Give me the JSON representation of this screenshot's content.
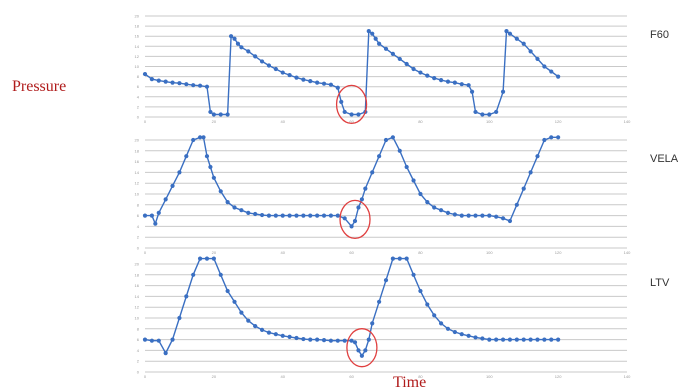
{
  "chart_data": {
    "type": "line",
    "ylabel": "Pressure",
    "xlabel": "Time",
    "x_ticks": [
      "0",
      "20",
      "40",
      "60",
      "80",
      "100",
      "120",
      "140"
    ],
    "y_ticks": [
      "0",
      "2",
      "4",
      "6",
      "8",
      "10",
      "12",
      "14",
      "16",
      "18",
      "20"
    ],
    "xlim": [
      0,
      140
    ],
    "ylim": [
      0,
      20
    ],
    "grid": "horizontal",
    "line_color": "#3a6fc2",
    "marker_color": "#e04040",
    "panels": [
      {
        "label": "F60",
        "x": [
          0,
          2,
          4,
          6,
          8,
          10,
          12,
          14,
          16,
          18,
          19,
          20,
          22,
          24,
          25,
          26,
          27,
          28,
          30,
          32,
          34,
          36,
          38,
          40,
          42,
          44,
          46,
          48,
          50,
          52,
          54,
          56,
          57,
          58,
          60,
          62,
          64,
          65,
          66,
          67,
          68,
          70,
          72,
          74,
          76,
          78,
          80,
          82,
          84,
          86,
          88,
          90,
          92,
          94,
          95,
          96,
          98,
          100,
          102,
          104,
          105,
          106,
          108,
          110,
          112,
          114,
          116,
          118,
          120
        ],
        "y": [
          8.5,
          7.5,
          7.2,
          7,
          6.8,
          6.7,
          6.5,
          6.3,
          6.2,
          6,
          1,
          0.5,
          0.5,
          0.5,
          16,
          15.5,
          14.5,
          13.8,
          13,
          12,
          11,
          10.2,
          9.5,
          8.8,
          8.3,
          7.8,
          7.4,
          7.1,
          6.8,
          6.6,
          6.4,
          5.8,
          3,
          1,
          0.5,
          0.5,
          1,
          17,
          16.5,
          15.5,
          14.5,
          13.5,
          12.5,
          11.5,
          10.5,
          9.5,
          8.8,
          8.2,
          7.7,
          7.3,
          7,
          6.8,
          6.5,
          6.3,
          5,
          1,
          0.5,
          0.5,
          1,
          5,
          17,
          16.5,
          15.5,
          14.5,
          13,
          11.5,
          10,
          9,
          8
        ],
        "marker": {
          "x": 60,
          "y": 2.5
        }
      },
      {
        "label": "VELA",
        "x": [
          0,
          2,
          3,
          4,
          6,
          8,
          10,
          12,
          14,
          16,
          17,
          18,
          19,
          20,
          22,
          24,
          26,
          28,
          30,
          32,
          34,
          36,
          38,
          40,
          42,
          44,
          46,
          48,
          50,
          52,
          54,
          56,
          58,
          60,
          61,
          62,
          63,
          64,
          66,
          68,
          70,
          72,
          74,
          76,
          78,
          80,
          82,
          84,
          86,
          88,
          90,
          92,
          94,
          96,
          98,
          100,
          102,
          104,
          106,
          108,
          110,
          112,
          114,
          116,
          118,
          120
        ],
        "y": [
          6,
          6,
          4.5,
          6.5,
          9,
          11.5,
          14,
          17,
          20,
          20.5,
          20.5,
          17,
          15,
          13,
          10.5,
          8.5,
          7.5,
          7,
          6.5,
          6.3,
          6.1,
          6,
          6,
          6,
          6,
          6,
          6,
          6,
          6,
          6,
          6,
          6,
          5.5,
          4,
          5,
          7.5,
          9,
          11,
          14,
          17,
          20,
          20.5,
          18,
          15,
          12.5,
          10,
          8.5,
          7.5,
          7,
          6.5,
          6.2,
          6,
          6,
          6,
          6,
          6,
          5.8,
          5.5,
          5,
          8,
          11,
          14,
          17,
          20,
          20.5,
          20.5
        ],
        "marker": {
          "x": 61,
          "y": 5.3
        }
      },
      {
        "label": "LTV",
        "x": [
          0,
          2,
          4,
          6,
          8,
          10,
          12,
          14,
          16,
          18,
          20,
          22,
          24,
          26,
          28,
          30,
          32,
          34,
          36,
          38,
          40,
          42,
          44,
          46,
          48,
          50,
          52,
          54,
          56,
          58,
          60,
          61,
          62,
          63,
          64,
          65,
          66,
          68,
          70,
          72,
          74,
          76,
          78,
          80,
          82,
          84,
          86,
          88,
          90,
          92,
          94,
          96,
          98,
          100,
          102,
          104,
          106,
          108,
          110,
          112,
          114,
          116,
          118,
          120
        ],
        "y": [
          6,
          5.8,
          5.8,
          3.5,
          6,
          10,
          14,
          18,
          21,
          21,
          21,
          18,
          15,
          13,
          11,
          9.5,
          8.5,
          7.8,
          7.3,
          7,
          6.7,
          6.5,
          6.3,
          6.1,
          6,
          6,
          5.9,
          5.8,
          5.8,
          5.8,
          5.8,
          5.5,
          4,
          3,
          4,
          6,
          9,
          13,
          17,
          21,
          21,
          21,
          18,
          15,
          12.5,
          10.5,
          9,
          8,
          7.4,
          7,
          6.7,
          6.4,
          6.2,
          6,
          6,
          6,
          6,
          6,
          6,
          6,
          6,
          6,
          6,
          6
        ],
        "marker": {
          "x": 63,
          "y": 4.5
        }
      }
    ]
  }
}
